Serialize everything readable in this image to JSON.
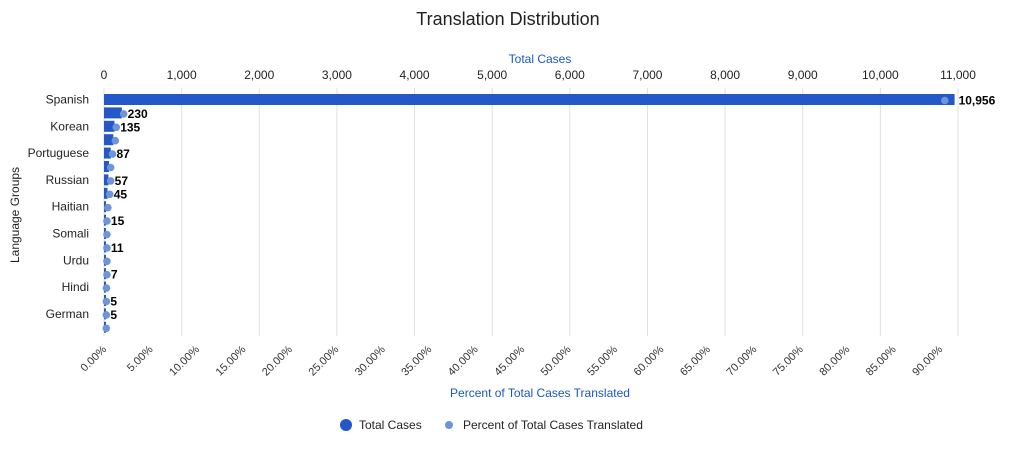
{
  "chart_data": {
    "type": "bar",
    "title": "Translation Distribution",
    "top_axis_title": "Total Cases",
    "bottom_axis_title": "Percent of Total Cases Translated",
    "ylabel": "Language Groups",
    "colors": {
      "bars": "#2457c8",
      "dots": "#6f95d8",
      "axis_title": "#1a56c4"
    },
    "category_labels": [
      "Spanish",
      "Korean",
      "Portuguese",
      "Russian",
      "Haitian",
      "Somali",
      "Urdu",
      "Hindi",
      "German"
    ],
    "top_ticks": [
      "0",
      "1,000",
      "2,000",
      "3,000",
      "4,000",
      "5,000",
      "6,000",
      "7,000",
      "8,000",
      "9,000",
      "10,000",
      "11,000"
    ],
    "top_range": [
      0,
      11000
    ],
    "bottom_ticks": [
      "0.00%",
      "5.00%",
      "10.00%",
      "15.00%",
      "20.00%",
      "25.00%",
      "30.00%",
      "35.00%",
      "40.00%",
      "45.00%",
      "50.00%",
      "55.00%",
      "60.00%",
      "65.00%",
      "70.00%",
      "75.00%",
      "80.00%",
      "85.00%",
      "90.00%"
    ],
    "bottom_range_percent": [
      0,
      95
    ],
    "grid": true,
    "legend_position": "bottom",
    "series": [
      {
        "name": "Total Cases",
        "values": [
          10956,
          230,
          135,
          120,
          87,
          65,
          57,
          45,
          20,
          15,
          12,
          11,
          9,
          7,
          6,
          5,
          5,
          4
        ],
        "labels": [
          "10,956",
          "230",
          "135",
          "",
          "87",
          "",
          "57",
          "45",
          "",
          "15",
          "",
          "11",
          "",
          "7",
          "",
          "5",
          "5",
          ""
        ]
      },
      {
        "name": "Percent of Total Cases Translated",
        "values_percent": [
          90.3,
          1.9,
          1.1,
          1.0,
          0.7,
          0.5,
          0.5,
          0.4,
          0.2,
          0.1,
          0.1,
          0.1,
          0.1,
          0.1,
          0.05,
          0.04,
          0.04,
          0.03
        ]
      }
    ]
  }
}
